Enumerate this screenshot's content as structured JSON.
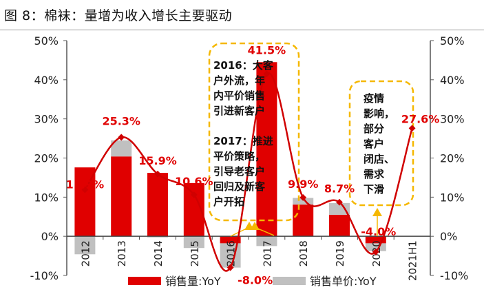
{
  "title": "图 8：棉袜：量增为收入增长主要驱动",
  "chart_data": {
    "type": "bar+line",
    "categories": [
      "2012",
      "2013",
      "2014",
      "2015",
      "2016",
      "2017",
      "2018",
      "2019",
      "2020",
      "2021H1"
    ],
    "series": [
      {
        "name": "销售量:YoY",
        "type": "bar",
        "color": "#e00000",
        "values": [
          17.6,
          20.4,
          16.2,
          13.6,
          -1.8,
          44.5,
          8.1,
          5.5,
          -1.8,
          null
        ]
      },
      {
        "name": "销售单价:YoY",
        "type": "bar",
        "color": "#c0c0c0",
        "values": [
          -4.6,
          4.1,
          -0.3,
          -3.0,
          -6.2,
          -2.5,
          1.7,
          3.0,
          -2.0,
          null
        ]
      },
      {
        "type": "line",
        "color": "#d00000",
        "values": [
          11.9,
          25.3,
          15.9,
          10.6,
          -8.0,
          41.5,
          9.9,
          8.7,
          -4.0,
          27.6
        ],
        "labels": [
          "11.9%",
          "25.3%",
          "15.9%",
          "10.6%",
          "-8.0%",
          "41.5%",
          "9.9%",
          "8.7%",
          "-4.0%",
          "27.6%"
        ]
      }
    ],
    "ylim": [
      -10,
      50
    ],
    "yticks": [
      "-10%",
      "0%",
      "10%",
      "20%",
      "30%",
      "40%",
      "50%"
    ],
    "legend": "bottom",
    "annotations": [
      [
        "2016：大客",
        "户外流，年",
        "内平价销售",
        "引进新客户",
        "",
        "2017：推进",
        "平价策略，",
        "引导老客户",
        "回归及新客",
        "户开拓"
      ],
      [
        "疫情",
        "影响，",
        "部分",
        "客户",
        "闭店、",
        "需求",
        "下滑"
      ]
    ]
  }
}
